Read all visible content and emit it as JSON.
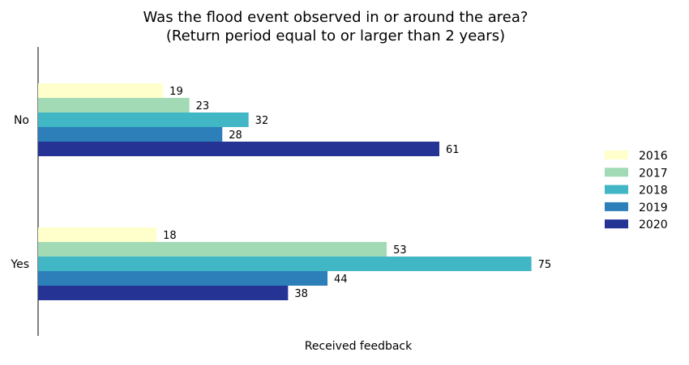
{
  "chart_data": {
    "type": "bar",
    "orientation": "horizontal",
    "title": "Was the flood event observed in or around the area?",
    "subtitle": "(Return period equal to or larger than 2 years)",
    "xlabel": "Received feedback",
    "ylabel": "",
    "categories": [
      "No",
      "Yes"
    ],
    "series": [
      {
        "name": "2016",
        "color": "#ffffcc",
        "values": [
          19,
          18
        ]
      },
      {
        "name": "2017",
        "color": "#a1dab4",
        "values": [
          23,
          53
        ]
      },
      {
        "name": "2018",
        "color": "#41b6c4",
        "values": [
          32,
          75
        ]
      },
      {
        "name": "2019",
        "color": "#2c7fb8",
        "values": [
          28,
          44
        ]
      },
      {
        "name": "2020",
        "color": "#253494",
        "values": [
          61,
          38
        ]
      }
    ],
    "data_labels": true,
    "x_ticks_shown": false,
    "grid": false,
    "legend_position": "right"
  }
}
